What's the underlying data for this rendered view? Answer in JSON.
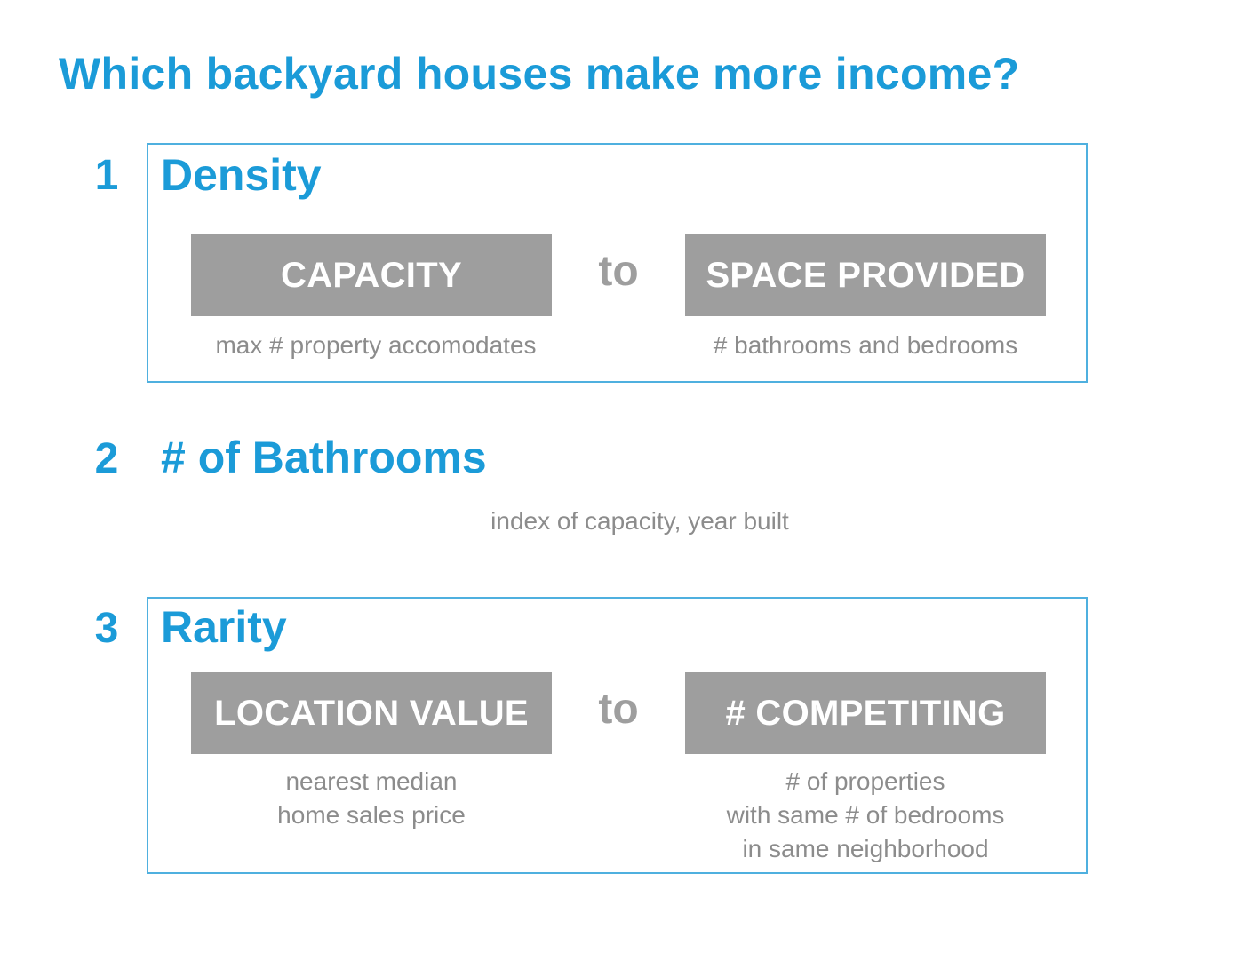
{
  "title": "Which backyard houses make more income?",
  "sections": [
    {
      "number": "1",
      "heading": "Density",
      "left": {
        "label": "CAPACITY",
        "description": [
          "max # property accomodates"
        ]
      },
      "connector": "to",
      "right": {
        "label": "SPACE PROVIDED",
        "description": [
          "# bathrooms and bedrooms"
        ]
      }
    },
    {
      "number": "2",
      "heading": "# of Bathrooms",
      "description": "index of capacity, year built"
    },
    {
      "number": "3",
      "heading": "Rarity",
      "left": {
        "label": "LOCATION VALUE",
        "description": [
          "nearest median",
          "home sales price"
        ]
      },
      "connector": "to",
      "right": {
        "label": "# COMPETITING",
        "description": [
          "# of properties",
          "with same # of bedrooms",
          "in same neighborhood"
        ]
      }
    }
  ],
  "colors": {
    "accent": "#1b9bd8",
    "frame": "#4fb0df",
    "box": "#9e9e9e",
    "muted_text": "#8c8c8c"
  }
}
